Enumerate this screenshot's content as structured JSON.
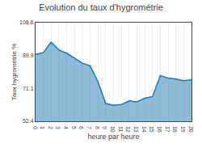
{
  "chart_data": {
    "type": "area",
    "title": "Evolution du taux d'hygrométrie",
    "x_label": "heure par heure",
    "y_label": "Taux hygrométrie %",
    "x": [
      0,
      1,
      2,
      3,
      4,
      5,
      6,
      7,
      8,
      9,
      10,
      11,
      12,
      13,
      14,
      15,
      16,
      17,
      18,
      19,
      20
    ],
    "values": [
      90.5,
      91.5,
      97.5,
      93.0,
      91.2,
      88.5,
      85.5,
      84.0,
      75.0,
      62.5,
      61.5,
      62.0,
      64.0,
      63.5,
      65.5,
      66.5,
      78.5,
      77.0,
      76.5,
      75.5,
      76.0
    ],
    "xlim": [
      0,
      20
    ],
    "xticks": [
      0,
      1,
      2,
      3,
      4,
      5,
      6,
      7,
      8,
      9,
      10,
      11,
      12,
      13,
      14,
      15,
      16,
      17,
      18,
      19,
      20
    ],
    "ylim": [
      52.4,
      108.6
    ],
    "yticks": [
      52.4,
      71.1,
      89.9,
      108.6
    ],
    "grid": "x"
  }
}
